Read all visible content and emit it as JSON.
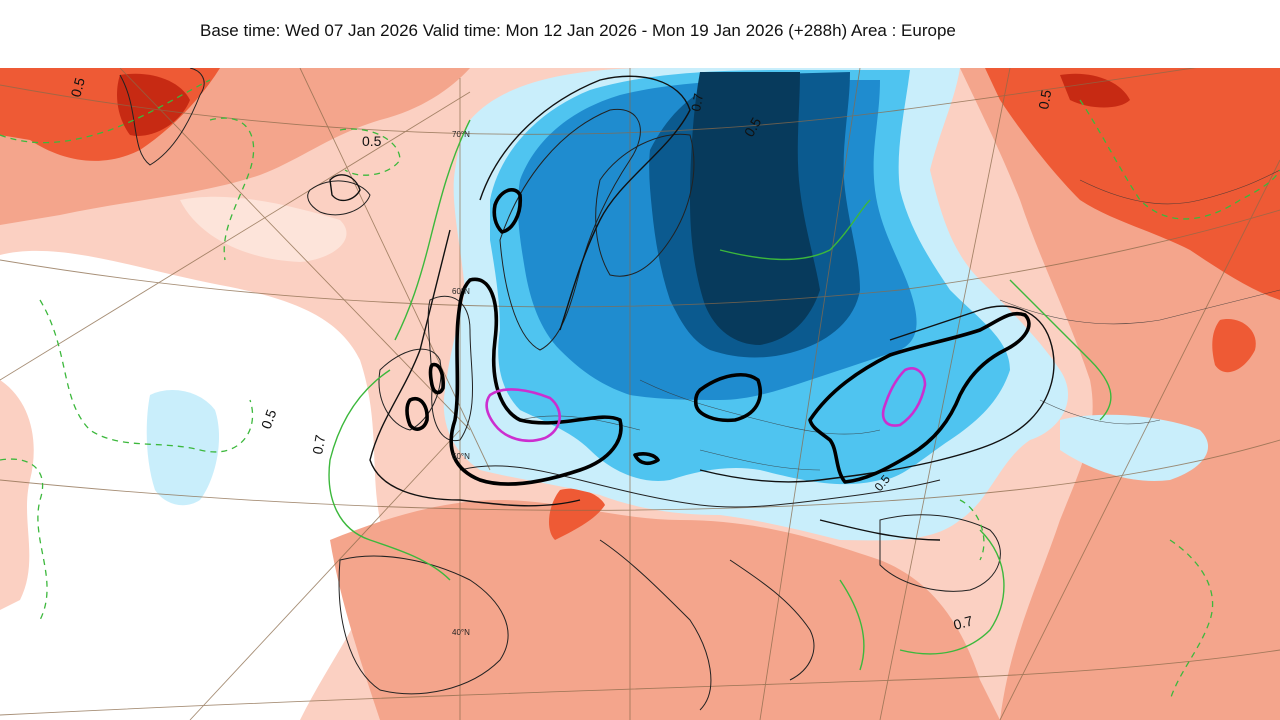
{
  "header": {
    "title": "Base time: Wed 07 Jan 2026 Valid time: Mon 12 Jan 2026 - Mon 19 Jan 2026 (+288h) Area : Europe"
  },
  "map": {
    "contour_labels": {
      "greenland_top": "0.5",
      "iceland": "0.5",
      "atlantic": "0.5",
      "atlantic_west": "0.7",
      "russia_top": "0.5",
      "scandinavia": "0.5",
      "baltic": "0.7",
      "black_sea": "0.7",
      "ukraine": "0.5"
    },
    "latitude_labels": {
      "lat70": "70°N",
      "lat60": "60°N",
      "lat50": "50°N",
      "lat40": "40°N"
    },
    "colors": {
      "warm_light": "#fbd0c2",
      "warm_mid": "#f4a58c",
      "warm_strong": "#ee5a35",
      "warm_deep": "#c72a13",
      "cold_light": "#c9eefb",
      "cold_mid": "#4fc4f0",
      "cold_strong": "#1f8ccf",
      "cold_deep": "#0b5a8f",
      "cold_darkest": "#073a5c",
      "near_zero": "#ffffff"
    }
  }
}
